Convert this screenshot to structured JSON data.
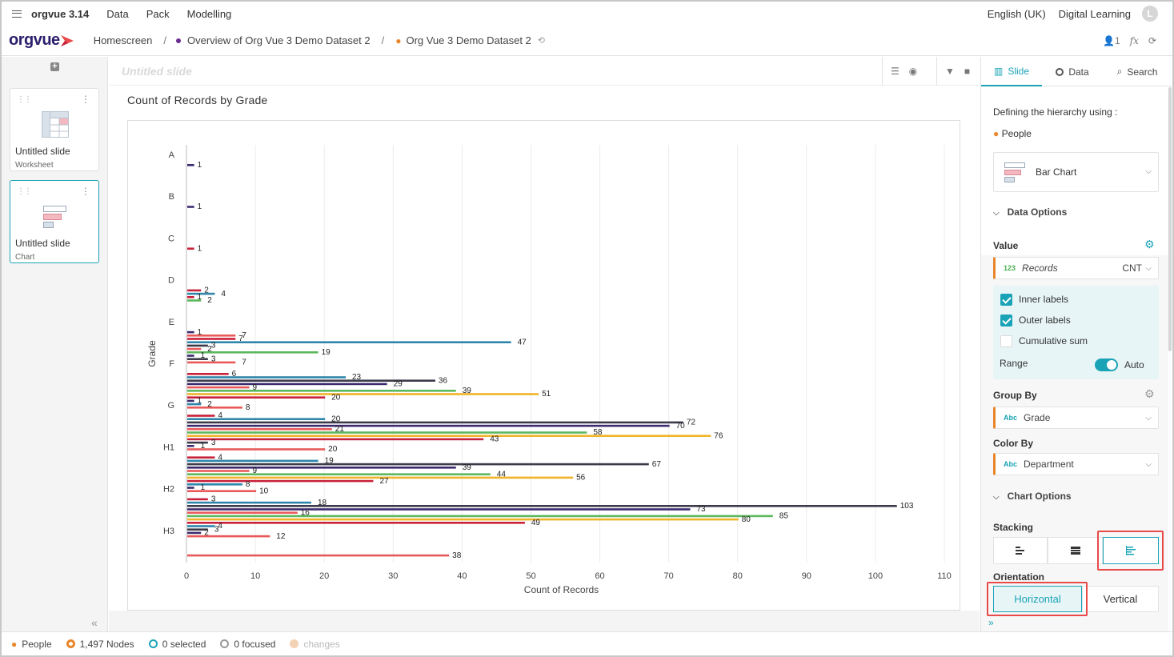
{
  "app": {
    "title": "orgvue 3.14",
    "menu": [
      "Data",
      "Pack",
      "Modelling"
    ],
    "language": "English (UK)",
    "workspace": "Digital Learning",
    "avatar_initial": "L"
  },
  "logo": "orgvue",
  "breadcrumb": {
    "home": "Homescreen",
    "overview": "Overview of Org Vue 3 Demo Dataset 2",
    "dataset": "Org Vue 3 Demo Dataset 2",
    "user_count": "1",
    "fx": "fx"
  },
  "slides": [
    {
      "title": "Untitled slide",
      "type": "Worksheet"
    },
    {
      "title": "Untitled slide",
      "type": "Chart"
    }
  ],
  "slide_header": {
    "name": "Untitled slide"
  },
  "chart_data": {
    "type": "bar",
    "orientation": "horizontal",
    "title": "Count of Records by Grade",
    "xlabel": "Count of Records",
    "ylabel": "Grade",
    "xlim": [
      0,
      110
    ],
    "xticks": [
      0,
      10,
      20,
      30,
      40,
      50,
      60,
      70,
      80,
      90,
      100,
      110
    ],
    "categories": [
      "A",
      "B",
      "C",
      "D",
      "E",
      "F",
      "G",
      "H1",
      "H2",
      "H3"
    ],
    "groups": [
      {
        "category": "A",
        "bars": [
          {
            "value": 1,
            "color": "#3b2a6e"
          }
        ]
      },
      {
        "category": "B",
        "bars": [
          {
            "value": 1,
            "color": "#3b2a6e"
          }
        ]
      },
      {
        "category": "C",
        "bars": [
          {
            "value": 1,
            "color": "#c8213a"
          }
        ]
      },
      {
        "category": "D",
        "bars": [
          {
            "value": 2,
            "color": "#c8213a"
          },
          {
            "value": 4,
            "color": "#2e86ab"
          },
          {
            "value": 1,
            "color": "#c8213a"
          },
          {
            "value": 2,
            "color": "#5cb85c"
          }
        ]
      },
      {
        "category": "E",
        "bars": [
          {
            "value": 1,
            "color": "#3b2a6e"
          },
          {
            "value": 7,
            "color": "#e85a5a"
          },
          {
            "value": 7,
            "color": "#c8213a"
          },
          {
            "value": 47,
            "color": "#2e86ab"
          },
          {
            "value": 3,
            "color": "#3b3b4a"
          },
          {
            "value": 2,
            "color": "#e85a5a"
          },
          {
            "value": 19,
            "color": "#5cb85c"
          },
          {
            "value": 1,
            "color": "#3b2a6e"
          },
          {
            "value": 3,
            "color": "#3b3b4a"
          },
          {
            "value": 7,
            "color": "#e85a5a"
          }
        ]
      },
      {
        "category": "F",
        "bars": [
          {
            "value": 6,
            "color": "#c8213a"
          },
          {
            "value": 23,
            "color": "#2e86ab"
          },
          {
            "value": 36,
            "color": "#3b3b4a"
          },
          {
            "value": 29,
            "color": "#3b2a6e"
          },
          {
            "value": 9,
            "color": "#e85a5a"
          },
          {
            "value": 39,
            "color": "#5cb85c"
          },
          {
            "value": 51,
            "color": "#f0b429"
          },
          {
            "value": 20,
            "color": "#c8213a"
          },
          {
            "value": 1,
            "color": "#3b2a6e"
          },
          {
            "value": 2,
            "color": "#2e86ab"
          },
          {
            "value": 8,
            "color": "#e85a5a"
          }
        ]
      },
      {
        "category": "G",
        "bars": [
          {
            "value": 4,
            "color": "#c8213a"
          },
          {
            "value": 20,
            "color": "#2e86ab"
          },
          {
            "value": 72,
            "color": "#3b3b4a"
          },
          {
            "value": 70,
            "color": "#3b2a6e"
          },
          {
            "value": 21,
            "color": "#e85a5a"
          },
          {
            "value": 58,
            "color": "#5cb85c"
          },
          {
            "value": 76,
            "color": "#f0b429"
          },
          {
            "value": 43,
            "color": "#c8213a"
          },
          {
            "value": 3,
            "color": "#3b3b4a"
          },
          {
            "value": 1,
            "color": "#3b2a6e"
          },
          {
            "value": 20,
            "color": "#e85a5a"
          }
        ]
      },
      {
        "category": "H1",
        "bars": [
          {
            "value": 4,
            "color": "#c8213a"
          },
          {
            "value": 19,
            "color": "#2e86ab"
          },
          {
            "value": 67,
            "color": "#3b3b4a"
          },
          {
            "value": 39,
            "color": "#3b2a6e"
          },
          {
            "value": 9,
            "color": "#e85a5a"
          },
          {
            "value": 44,
            "color": "#5cb85c"
          },
          {
            "value": 56,
            "color": "#f0b429"
          },
          {
            "value": 27,
            "color": "#c8213a"
          },
          {
            "value": 8,
            "color": "#2e86ab"
          },
          {
            "value": 1,
            "color": "#3b2a6e"
          },
          {
            "value": 10,
            "color": "#e85a5a"
          }
        ]
      },
      {
        "category": "H2",
        "bars": [
          {
            "value": 3,
            "color": "#c8213a"
          },
          {
            "value": 18,
            "color": "#2e86ab"
          },
          {
            "value": 103,
            "color": "#3b3b4a"
          },
          {
            "value": 73,
            "color": "#3b2a6e"
          },
          {
            "value": 16,
            "color": "#e85a5a"
          },
          {
            "value": 85,
            "color": "#5cb85c"
          },
          {
            "value": 80,
            "color": "#f0b429"
          },
          {
            "value": 49,
            "color": "#c8213a"
          },
          {
            "value": 4,
            "color": "#2e86ab"
          },
          {
            "value": 3,
            "color": "#3b3b4a"
          },
          {
            "value": 2,
            "color": "#3b2a6e"
          },
          {
            "value": 12,
            "color": "#e85a5a"
          }
        ]
      },
      {
        "category": "H3",
        "bars": [
          {
            "value": 38,
            "color": "#e85a5a"
          }
        ]
      }
    ]
  },
  "right_panel": {
    "tabs": [
      "Slide",
      "Data",
      "Search"
    ],
    "hierarchy_label": "Defining the hierarchy using :",
    "hierarchy_value": "People",
    "chart_type": "Bar Chart",
    "data_options": "Data Options",
    "value_label": "Value",
    "value_field": {
      "type": "123",
      "name": "Records",
      "agg": "CNT"
    },
    "inner_labels": "Inner labels",
    "outer_labels": "Outer labels",
    "cumulative_sum": "Cumulative sum",
    "range_label": "Range",
    "range_value": "Auto",
    "group_by_label": "Group By",
    "group_by_field": {
      "type": "Abc",
      "name": "Grade"
    },
    "color_by_label": "Color By",
    "color_by_field": {
      "type": "Abc",
      "name": "Department"
    },
    "chart_options": "Chart Options",
    "stacking_label": "Stacking",
    "orientation_label": "Orientation",
    "orientation_options": [
      "Horizontal",
      "Vertical"
    ]
  },
  "status": {
    "hierarchy": "People",
    "nodes": "1,497 Nodes",
    "selected": "0 selected",
    "focused": "0 focused",
    "changes": "changes"
  },
  "colors": {
    "accent": "#1aa3b6",
    "highlight": "#e84a4a",
    "brand": "#2b1f6b"
  }
}
